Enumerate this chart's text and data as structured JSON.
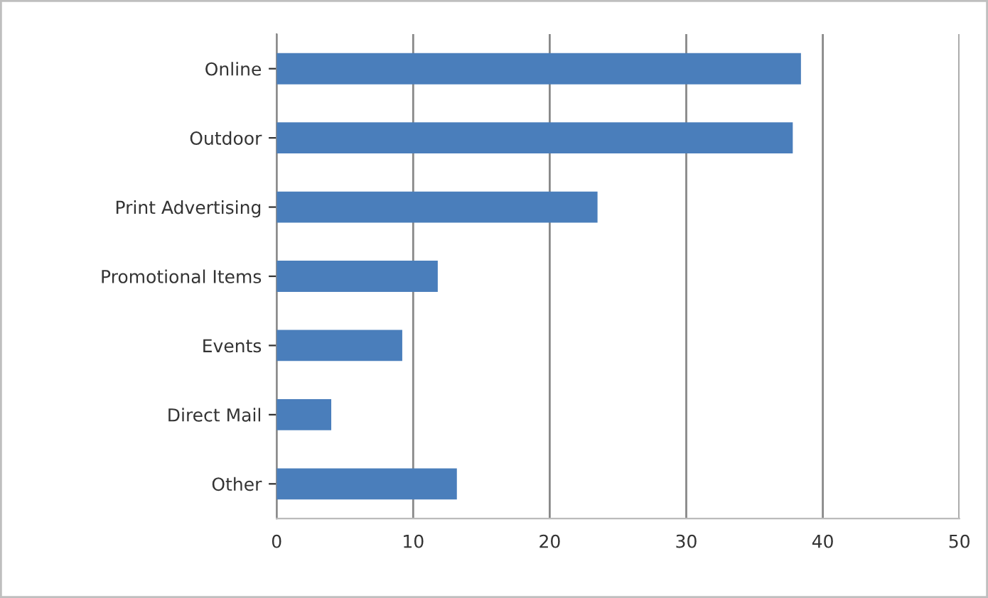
{
  "chart_data": {
    "type": "bar",
    "orientation": "horizontal",
    "categories": [
      "Online",
      "Outdoor",
      "Print Advertising",
      "Promotional Items",
      "Events",
      "Direct Mail",
      "Other"
    ],
    "values": [
      38.4,
      37.8,
      23.5,
      11.8,
      9.2,
      4.0,
      13.2
    ],
    "color": "#4a7ebb",
    "xlim": [
      0,
      50
    ],
    "xticks": [
      0,
      10,
      20,
      30,
      40,
      50
    ],
    "grid": "x"
  }
}
